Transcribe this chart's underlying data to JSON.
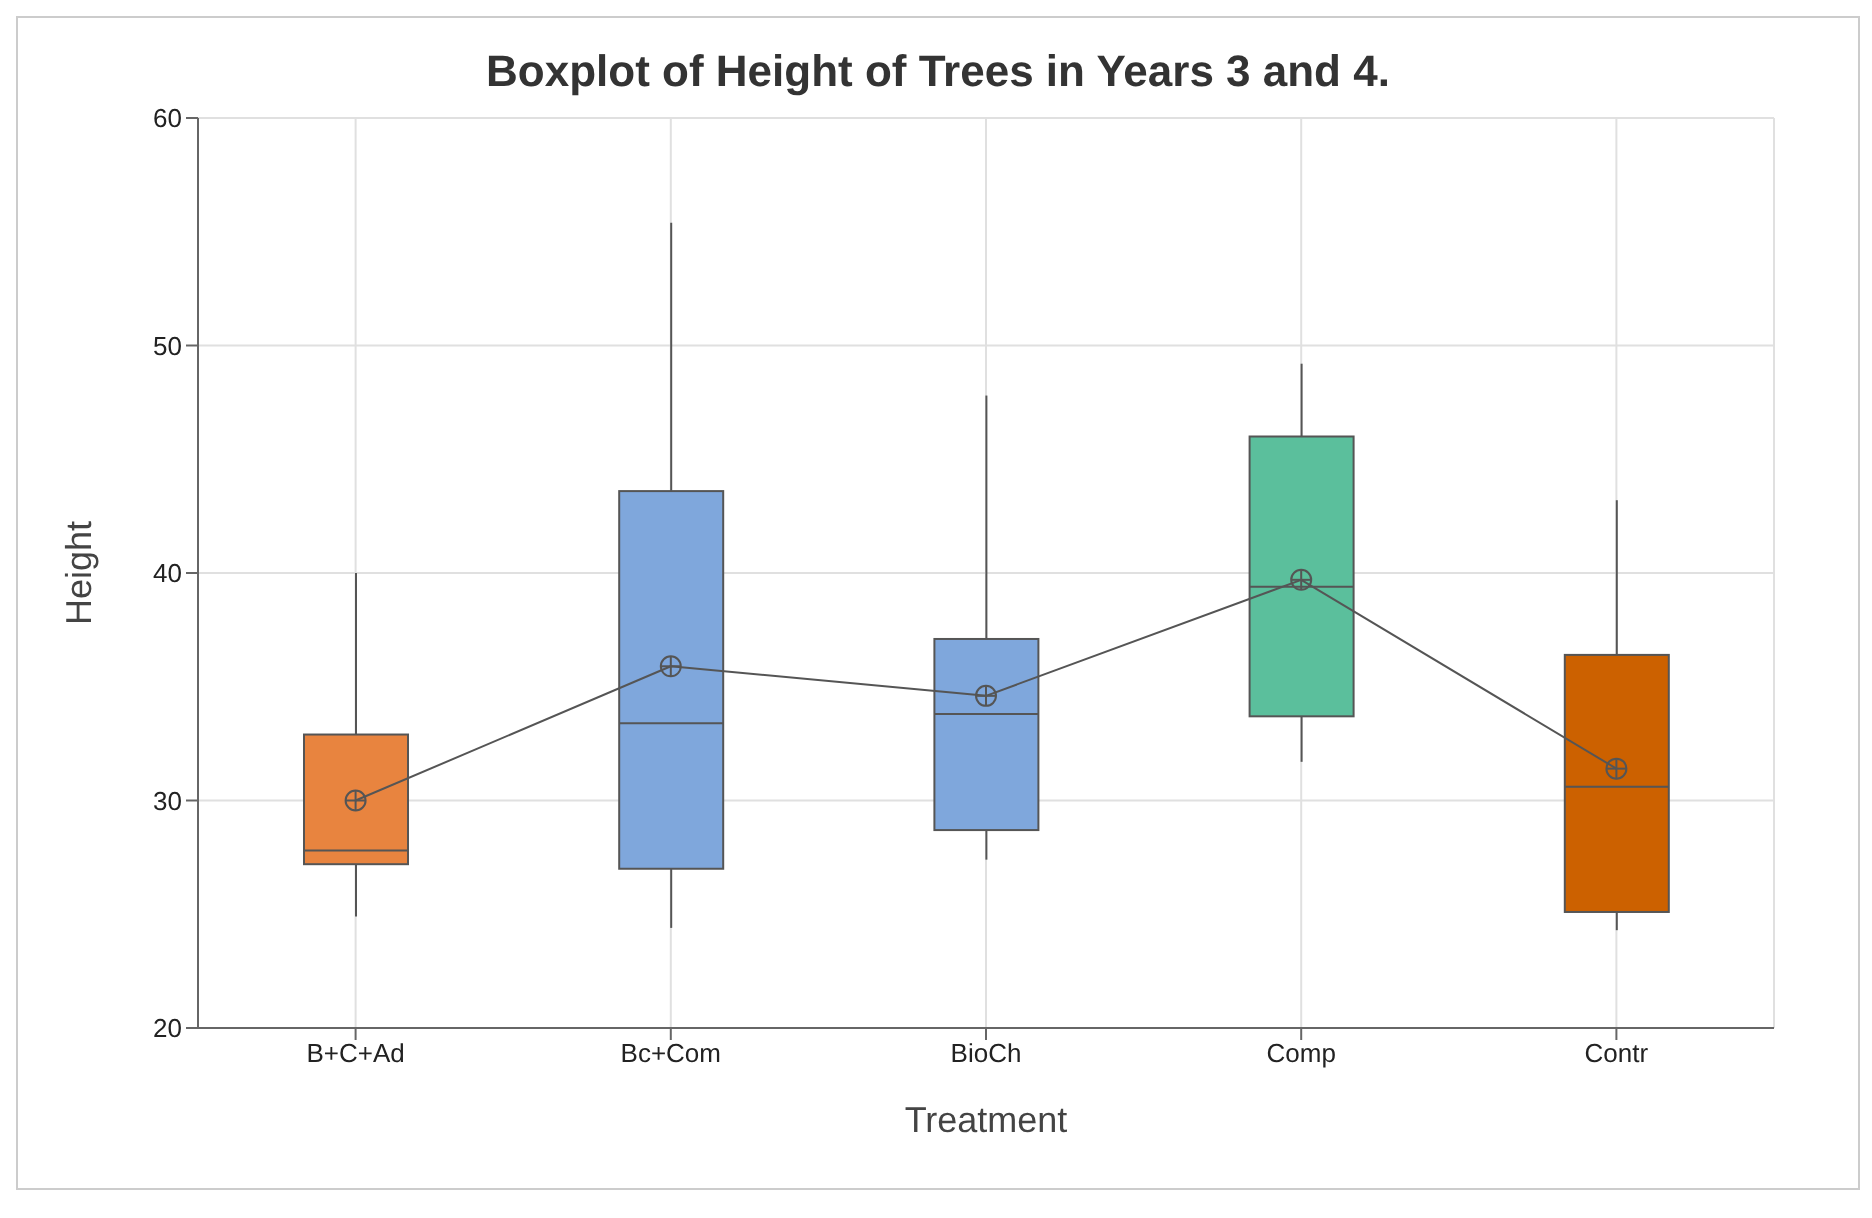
{
  "chart_data": {
    "type": "box",
    "title": "Boxplot of Height of Trees in Years 3 and 4.",
    "xlabel": "Treatment",
    "ylabel": "Height",
    "categories": [
      "B+C+Ad",
      "Bc+Com",
      "BioCh",
      "Comp",
      "Contr"
    ],
    "colors": [
      "#e8843f",
      "#7fa7dc",
      "#7fa7dc",
      "#5bbf9c",
      "#cc6100"
    ],
    "boxes": [
      {
        "low": 24.9,
        "q1": 27.2,
        "median": 27.8,
        "q3": 32.9,
        "high": 40.0
      },
      {
        "low": 24.4,
        "q1": 27.0,
        "median": 33.4,
        "q3": 43.6,
        "high": 55.4
      },
      {
        "low": 27.4,
        "q1": 28.7,
        "median": 33.8,
        "q3": 37.1,
        "high": 47.8
      },
      {
        "low": 31.7,
        "q1": 33.7,
        "median": 39.4,
        "q3": 46.0,
        "high": 49.2
      },
      {
        "low": 24.3,
        "q1": 25.1,
        "median": 30.6,
        "q3": 36.4,
        "high": 43.2
      }
    ],
    "series": [
      {
        "type": "line",
        "color": "#555555",
        "marker": "circle",
        "values": [
          30.0,
          35.9,
          34.6,
          39.7,
          31.4
        ]
      }
    ],
    "ylim": [
      20,
      60
    ],
    "yticks": [
      20,
      30,
      40,
      50,
      60
    ],
    "grid": true
  }
}
